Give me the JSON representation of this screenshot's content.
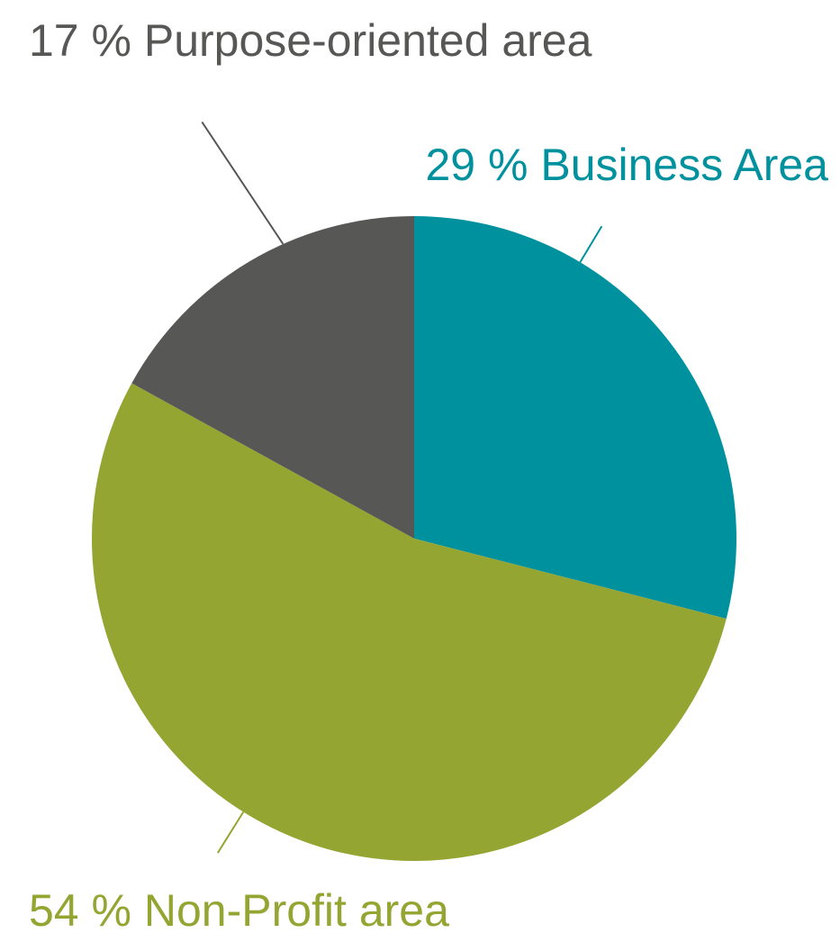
{
  "chart_data": {
    "type": "pie",
    "title": "",
    "slices": [
      {
        "label": "29 % Business Area",
        "name": "Business Area",
        "value": 29,
        "color": "#00919f"
      },
      {
        "label": "54 % Non-Profit area",
        "name": "Non-Profit area",
        "value": 54,
        "color": "#95a532"
      },
      {
        "label": "17 % Purpose-oriented area",
        "name": "Purpose-oriented area",
        "value": 17,
        "color": "#575756"
      }
    ],
    "start_angle": "12 o'clock",
    "direction": "clockwise",
    "legend": "none",
    "label_color_matches_slice": true
  }
}
